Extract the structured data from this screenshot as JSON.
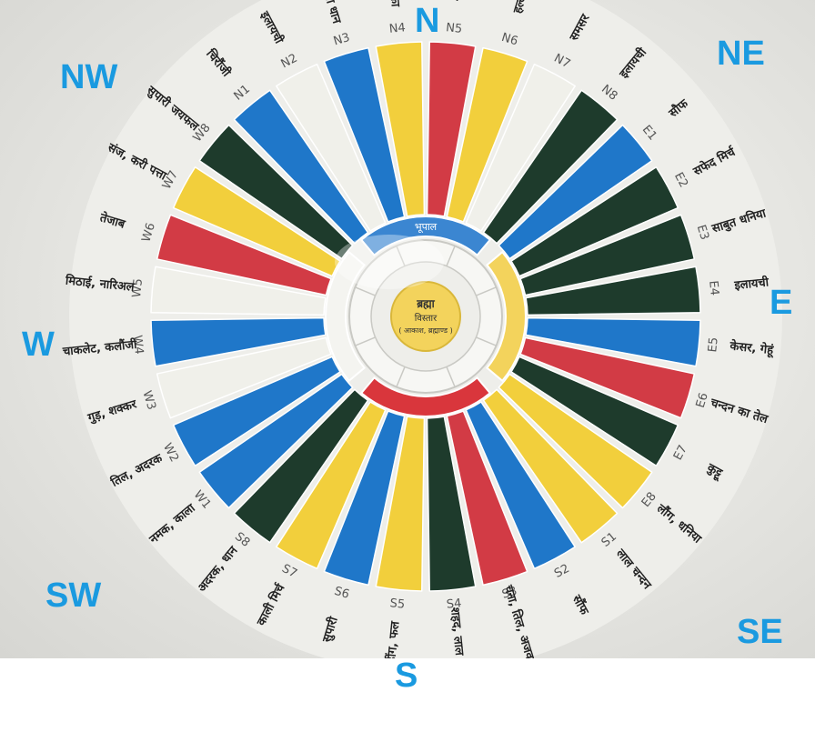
{
  "directions": {
    "N": "N",
    "NE": "NE",
    "E": "E",
    "SE": "SE",
    "S": "S",
    "SW": "SW",
    "W": "W",
    "NW": "NW"
  },
  "colors": {
    "red": "#d23b45",
    "yellow": "#f2cf3c",
    "blue": "#1f77c9",
    "green": "#1e3b2c",
    "white": "#f0f0ea",
    "compass": "#1a9ae0",
    "inner_yellow": "#f3d35c",
    "inner_red": "#d9363c",
    "inner_blue": "#3b86d1"
  },
  "segments": [
    {
      "code": "N5",
      "color": "red",
      "item": "शहद"
    },
    {
      "code": "N6",
      "color": "yellow",
      "item": "हल्दी"
    },
    {
      "code": "N7",
      "color": "white",
      "item": "समसर"
    },
    {
      "code": "N8",
      "color": "green",
      "item": "इलायची"
    },
    {
      "code": "E1",
      "color": "blue",
      "item": "सौफ"
    },
    {
      "code": "E2",
      "color": "green",
      "item": "सफेद मिर्च"
    },
    {
      "code": "E3",
      "color": "green",
      "item": "साबुत धनिया"
    },
    {
      "code": "E4",
      "color": "green",
      "item": "इलायची"
    },
    {
      "code": "E5",
      "color": "blue",
      "item": "केसर, गेहूं"
    },
    {
      "code": "E6",
      "color": "red",
      "item": "चन्दन का तेल"
    },
    {
      "code": "E7",
      "color": "green",
      "item": "कुट्टू"
    },
    {
      "code": "E8",
      "color": "yellow",
      "item": "लौंग, धनिया"
    },
    {
      "code": "S1",
      "color": "yellow",
      "item": "लाल चन्दन"
    },
    {
      "code": "S2",
      "color": "blue",
      "item": "सौंफ"
    },
    {
      "code": "S3",
      "color": "red",
      "item": "चना, तिल, अजवाइन"
    },
    {
      "code": "S4",
      "color": "green",
      "item": "शहद, लाल मिर्च"
    },
    {
      "code": "S5",
      "color": "yellow",
      "item": "हींग, फल"
    },
    {
      "code": "S6",
      "color": "blue",
      "item": "सुपारी"
    },
    {
      "code": "S7",
      "color": "yellow",
      "item": "काली मिर्च"
    },
    {
      "code": "S8",
      "color": "green",
      "item": "अदरक, धान"
    },
    {
      "code": "W1",
      "color": "blue",
      "item": "नमक, काला"
    },
    {
      "code": "W2",
      "color": "blue",
      "item": "तिल, अदरक"
    },
    {
      "code": "W3",
      "color": "white",
      "item": "गुड़, शक्कर"
    },
    {
      "code": "W4",
      "color": "blue",
      "item": "चाकलेट, कलौंजी"
    },
    {
      "code": "W5",
      "color": "white",
      "item": "मिठाई, नारिअल"
    },
    {
      "code": "W6",
      "color": "red",
      "item": "तेजाब"
    },
    {
      "code": "W7",
      "color": "yellow",
      "item": "संज, करी पत्ता"
    },
    {
      "code": "W8",
      "color": "green",
      "item": "सुपारी जयफल"
    },
    {
      "code": "N1",
      "color": "blue",
      "item": "चिरौंजी"
    },
    {
      "code": "N2",
      "color": "white",
      "item": "इलायची"
    },
    {
      "code": "N3",
      "color": "blue",
      "item": "पीला धान"
    },
    {
      "code": "N4",
      "color": "yellow",
      "item": "मुनक्का"
    }
  ],
  "inner_rings": {
    "top_band": "भूपाल",
    "center_title": "ब्रह्मा",
    "center_sub1": "विस्तार",
    "center_sub2": "( आकाश, ब्रह्माण्ड )"
  }
}
